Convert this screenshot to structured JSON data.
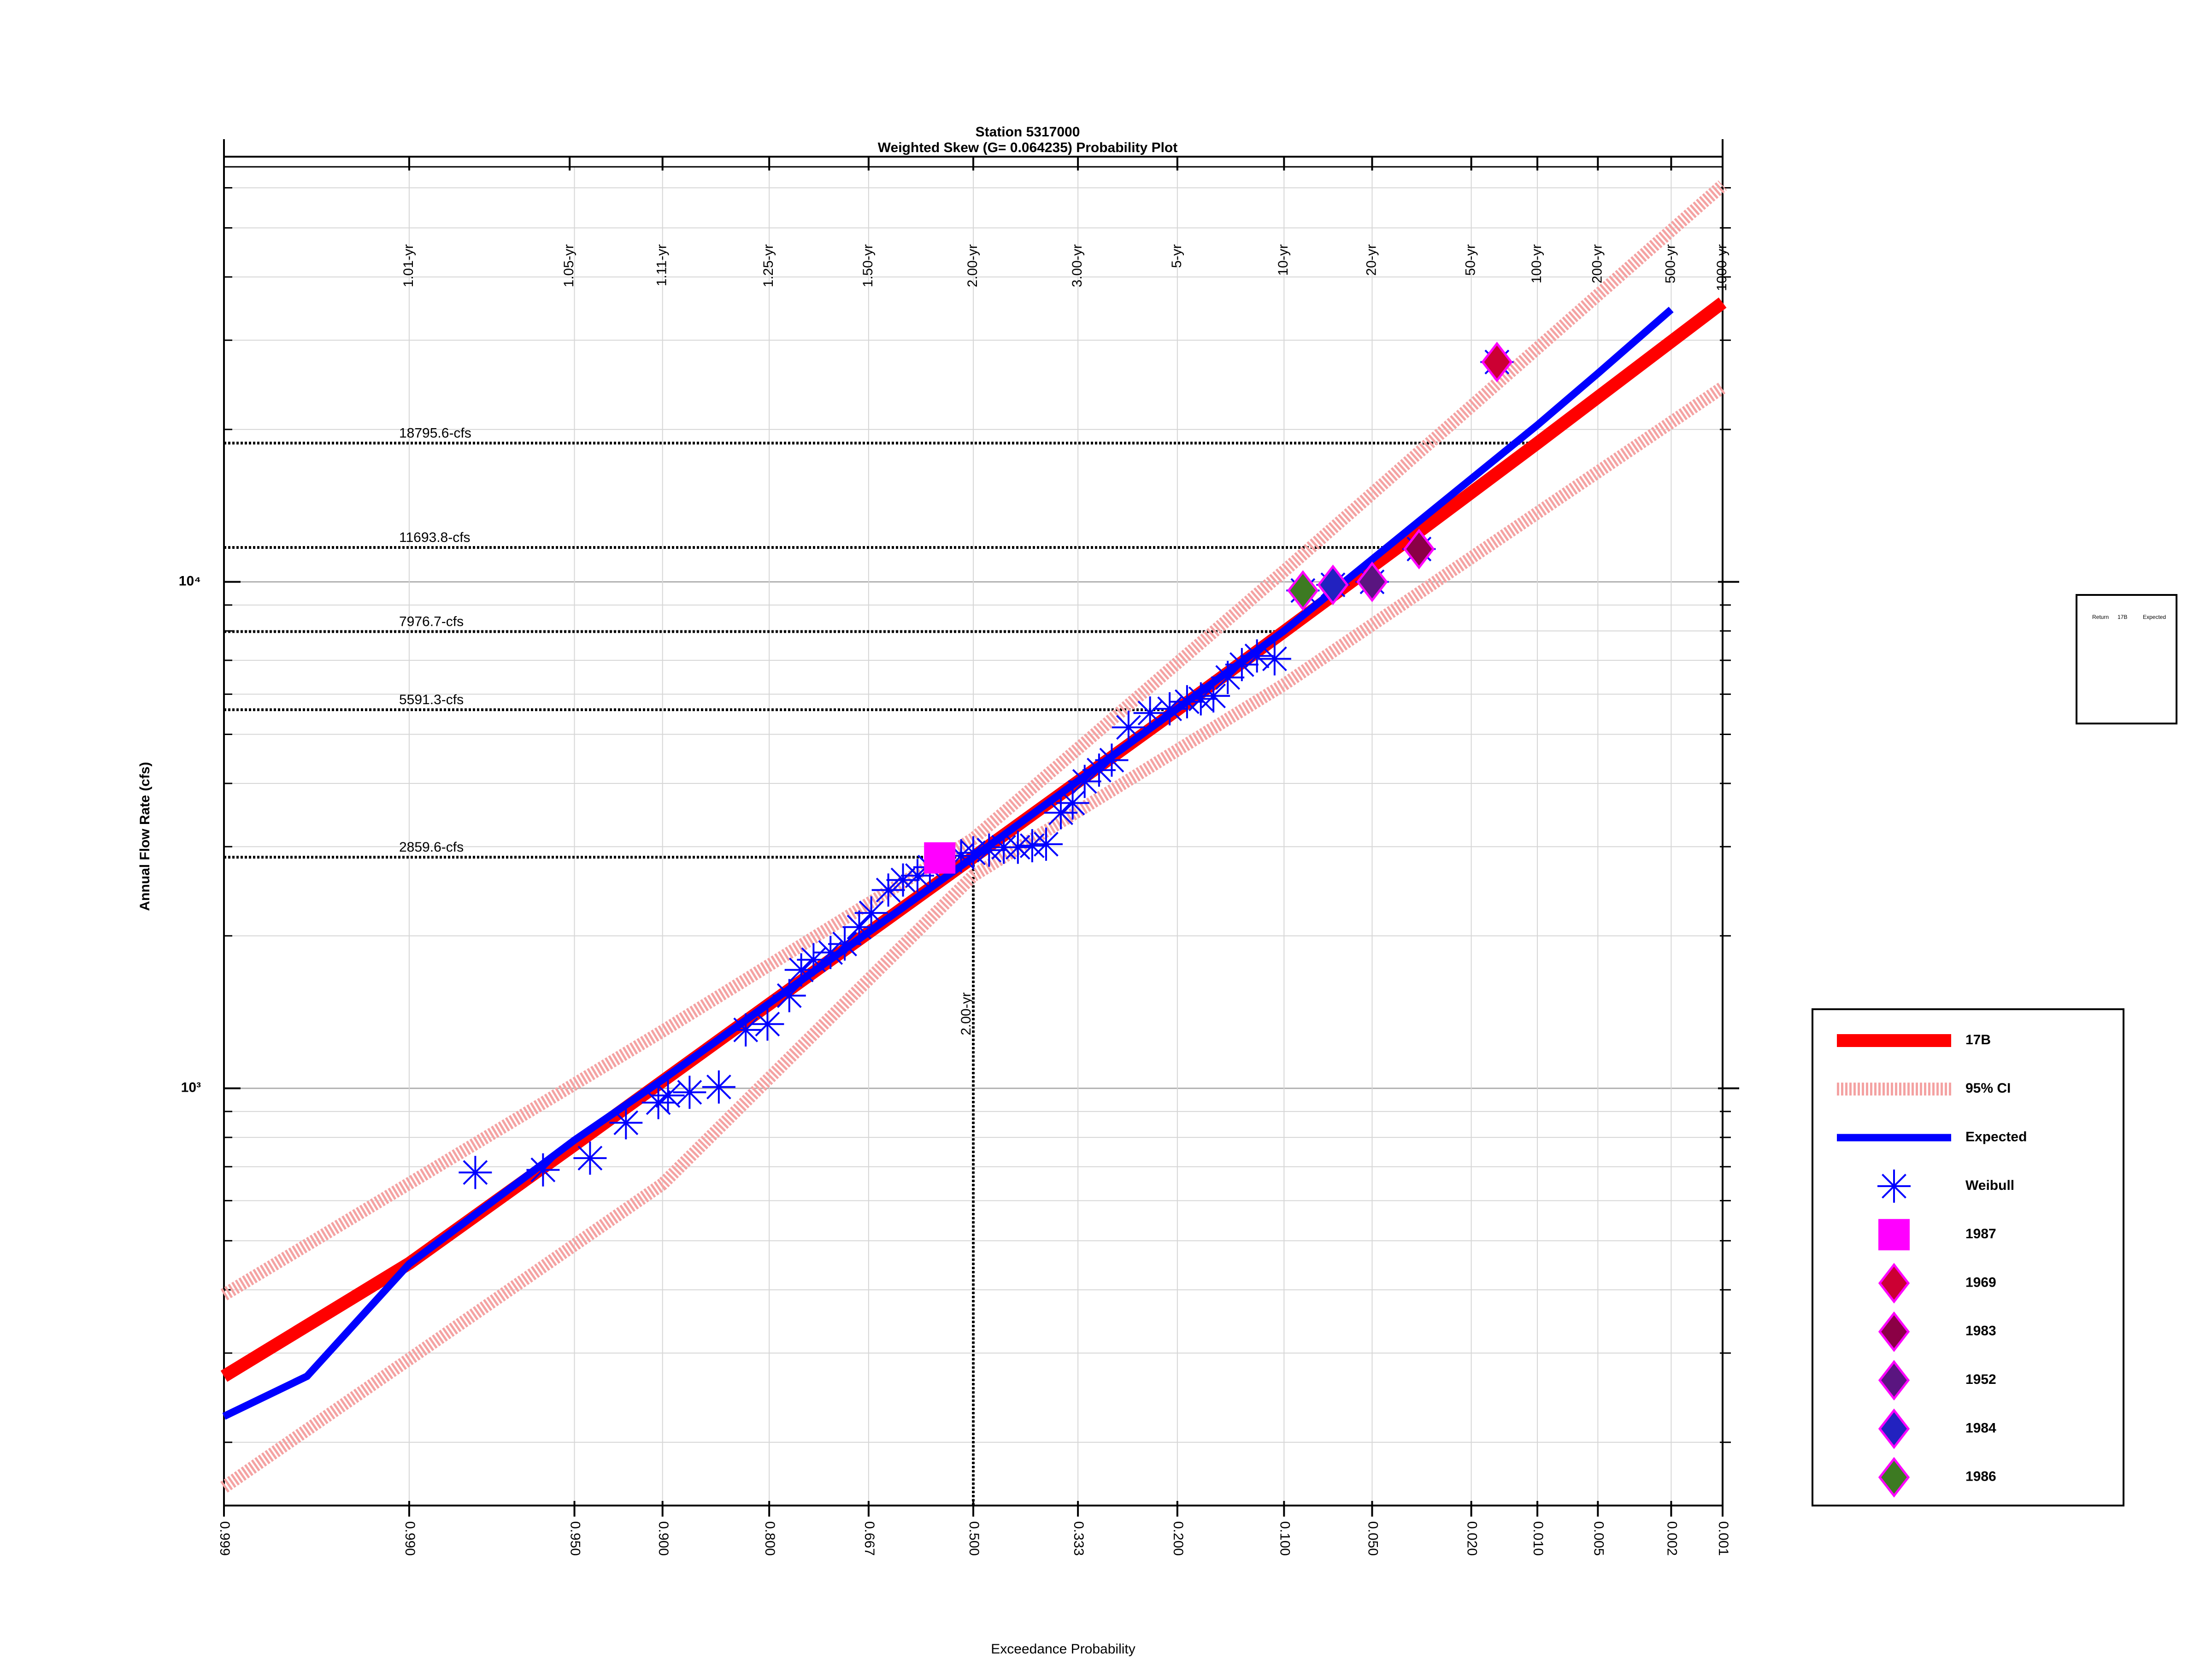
{
  "chart_data": {
    "type": "probability",
    "title": "Station 5317000",
    "subtitle": "Weighted Skew (G= 0.064235) Probability Plot",
    "y_label": "Annual Flow Rate (cfs)",
    "x_label": "Exceedance Probability",
    "log_y": true,
    "grid": true,
    "legend": "lower right",
    "xlim": [
      0.999,
      0.001
    ],
    "ylim": [
      150,
      66000
    ],
    "xticks": [
      0.999,
      {
        "value": 0.99,
        "label": "0.990"
      },
      {
        "value": 0.95,
        "label": "0.950"
      },
      {
        "value": 0.9,
        "label": "0.900"
      },
      {
        "value": 0.8,
        "label": "0.800"
      },
      0.667,
      {
        "value": 0.5,
        "label": "0.500"
      },
      0.333,
      {
        "value": 0.2,
        "label": "0.200"
      },
      {
        "value": 0.1,
        "label": "0.100"
      },
      {
        "value": 0.05,
        "label": "0.050"
      },
      {
        "value": 0.02,
        "label": "0.020"
      },
      {
        "value": 0.01,
        "label": "0.010"
      },
      0.005,
      0.002,
      0.001
    ],
    "x2ticks": [
      {
        "value": 0.99,
        "label": "1.01-yr"
      },
      {
        "value": 0.952,
        "label": "1.05-yr"
      },
      {
        "value": 0.9,
        "label": "1.11-yr"
      },
      {
        "value": 0.8,
        "label": "1.25-yr"
      },
      {
        "value": 0.667,
        "label": "1.50-yr"
      },
      {
        "value": 0.5,
        "label": "2.00-yr"
      },
      {
        "value": 0.333,
        "label": "3.00-yr"
      },
      {
        "value": 0.2,
        "label": "5-yr"
      },
      {
        "value": 0.1,
        "label": "10-yr"
      },
      {
        "value": 0.05,
        "label": "20-yr"
      },
      {
        "value": 0.02,
        "label": "50-yr"
      },
      {
        "value": 0.01,
        "label": "100-yr"
      },
      {
        "value": 0.005,
        "label": "200-yr"
      },
      {
        "value": 0.002,
        "label": "500-yr"
      },
      {
        "value": 0.001,
        "label": "1000-yr"
      }
    ],
    "yticks": [
      {
        "value": 1000,
        "label": "10³"
      },
      {
        "value": 10000,
        "label": "10⁴"
      }
    ],
    "yminorticks": [
      200,
      300,
      400,
      500,
      600,
      700,
      800,
      900,
      2000,
      3000,
      4000,
      5000,
      6000,
      7000,
      8000,
      9000,
      20000,
      30000,
      40000,
      50000,
      60000
    ],
    "ref_lines": [
      {
        "value": 18795.6,
        "label": "18795.6-cfs",
        "x": 0.01
      },
      {
        "value": 11693.8,
        "label": "11693.8-cfs",
        "x": 0.04
      },
      {
        "value": 7976.7,
        "label": "7976.7-cfs",
        "x": 0.1
      },
      {
        "value": 5591.3,
        "label": "5591.3-cfs",
        "x": 0.2
      },
      {
        "value": 2859.6,
        "label": "2859.6-cfs",
        "x": 0.5
      }
    ],
    "vertical_line": {
      "x": 0.5,
      "y": 2859.6,
      "label": "2.00-yr"
    },
    "table_headers": [
      "Return",
      "17B",
      "Expected"
    ],
    "series": [
      {
        "name": "17B",
        "color": "#ff0000",
        "marker": "line",
        "x": [
          0.999,
          0.99,
          0.95,
          0.9,
          0.8,
          0.5,
          0.2,
          0.1,
          0.04,
          0.01,
          0.001
        ],
        "values": [
          270,
          451,
          773,
          1033,
          1466,
          2859.6,
          5591.3,
          7976.7,
          11693.8,
          18795.6,
          35600
        ]
      },
      {
        "name": "95% CI",
        "color": "#f4a2a2",
        "marker": "band",
        "x": [
          0.999,
          0.9,
          0.5,
          0.1,
          0.001
        ],
        "lower": [
          163,
          647,
          2630,
          6270,
          24200
        ],
        "upper": [
          391,
          1297,
          3110,
          10500,
          60700
        ]
      },
      {
        "name": "Expected",
        "color": "#0000ff",
        "marker": "line",
        "x": [
          0.999,
          0.997,
          0.99,
          0.95,
          0.9,
          0.5,
          0.1,
          0.01,
          0.005,
          0.002
        ],
        "values": [
          225,
          270,
          450,
          790,
          1040,
          2860,
          8000,
          20400,
          25800,
          34500
        ]
      },
      {
        "name": "Weibull",
        "color": "#0000ff",
        "marker": "asterisk",
        "x": [
          0.98,
          0.962,
          0.943,
          0.924,
          0.903,
          0.896,
          0.879,
          0.853,
          0.826,
          0.802,
          0.776,
          0.761,
          0.745,
          0.722,
          0.702,
          0.681,
          0.663,
          0.637,
          0.614,
          0.591,
          0.571,
          0.52,
          0.5,
          0.474,
          0.45,
          0.427,
          0.404,
          0.382,
          0.359,
          0.341,
          0.323,
          0.302,
          0.284,
          0.261,
          0.233,
          0.209,
          0.189,
          0.174,
          0.161,
          0.147,
          0.134,
          0.121,
          0.107,
          0.087,
          0.069,
          0.05,
          0.033,
          0.0154
        ],
        "values": [
          682,
          690,
          728,
          855,
          937,
          968,
          982,
          1006,
          1304,
          1339,
          1524,
          1713,
          1794,
          1854,
          1927,
          2081,
          2219,
          2463,
          2578,
          2630,
          2733,
          2878,
          2917,
          2953,
          2992,
          2992,
          3013,
          3034,
          3500,
          3659,
          4036,
          4249,
          4446,
          5161,
          5508,
          5614,
          5799,
          5875,
          5953,
          6475,
          6866,
          7140,
          7047,
          9615,
          9864,
          10000,
          11610,
          27170
        ]
      },
      {
        "name": "1987",
        "color": "#ff00ff",
        "marker": "square",
        "x": [
          0.555
        ],
        "values": [
          2850
        ]
      },
      {
        "name": "1969",
        "color": "#cc0033",
        "edgecolor": "#ff00ff",
        "marker": "diamond",
        "x": [
          0.0154
        ],
        "values": [
          27170
        ]
      },
      {
        "name": "1983",
        "color": "#8b0045",
        "edgecolor": "#ff00ff",
        "marker": "diamond",
        "x": [
          0.033
        ],
        "values": [
          11610
        ]
      },
      {
        "name": "1952",
        "color": "#5a1580",
        "edgecolor": "#ff00ff",
        "marker": "diamond",
        "x": [
          0.05
        ],
        "values": [
          10000
        ]
      },
      {
        "name": "1984",
        "color": "#2222c0",
        "edgecolor": "#ff00ff",
        "marker": "diamond",
        "x": [
          0.069
        ],
        "values": [
          9864
        ]
      },
      {
        "name": "1986",
        "color": "#3d7a22",
        "edgecolor": "#ff00ff",
        "marker": "diamond",
        "x": [
          0.087
        ],
        "values": [
          9615
        ]
      }
    ]
  }
}
